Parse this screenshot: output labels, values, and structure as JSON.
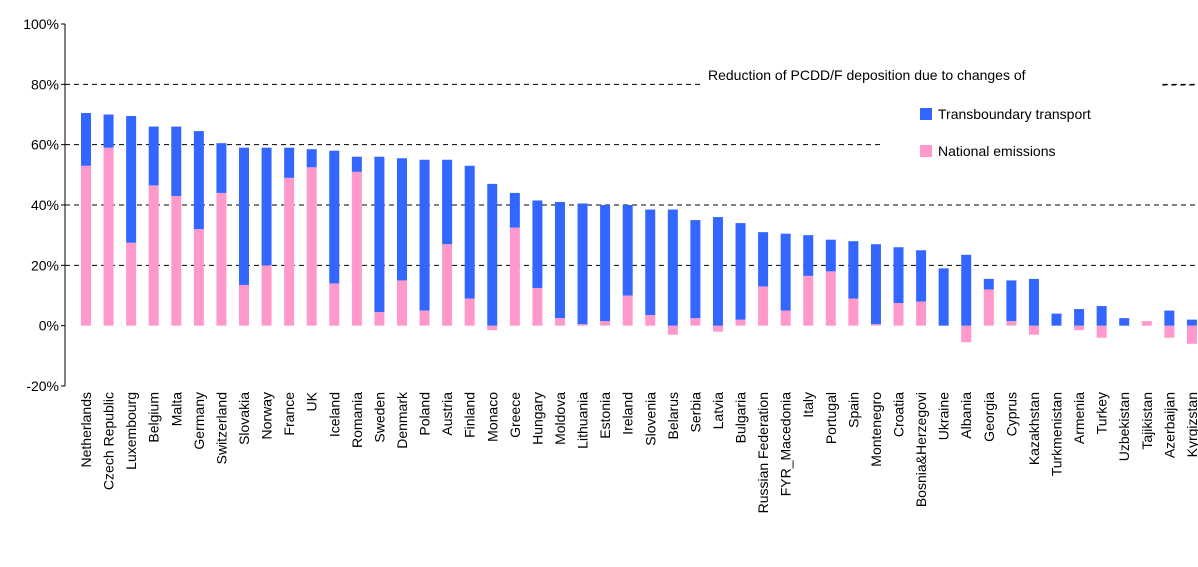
{
  "chart_data": {
    "type": "bar",
    "stacked": true,
    "legend_title": "Reduction of PCDD/F deposition due to changes of",
    "categories": [
      "Netherlands",
      "Czech Republic",
      "Luxembourg",
      "Belgium",
      "Malta",
      "Germany",
      "Switzerland",
      "Slovakia",
      "Norway",
      "France",
      "UK",
      "Iceland",
      "Romania",
      "Sweden",
      "Denmark",
      "Poland",
      "Austria",
      "Finland",
      "Monaco",
      "Greece",
      "Hungary",
      "Moldova",
      "Lithuania",
      "Estonia",
      "Ireland",
      "Slovenia",
      "Belarus",
      "Serbia",
      "Latvia",
      "Bulgaria",
      "Russian Federation",
      "FYR_Macedonia",
      "Italy",
      "Portugal",
      "Spain",
      "Montenegro",
      "Croatia",
      "Bosnia&Herzegovi",
      "Ukraine",
      "Albania",
      "Georgia",
      "Cyprus",
      "Kazakhstan",
      "Turkmenistan",
      "Armenia",
      "Turkey",
      "Uzbekistan",
      "Tajikistan",
      "Azerbaijan",
      "Kyrgizstan"
    ],
    "series": [
      {
        "name": "National emissions",
        "color": "#ff99cc",
        "values": [
          53,
          59,
          27.5,
          46.5,
          43,
          32,
          44,
          13.5,
          20,
          49,
          52.5,
          14,
          51,
          4.5,
          15,
          5,
          27,
          9,
          -1.5,
          32.5,
          12.5,
          2.5,
          0.5,
          1.5,
          10,
          3.5,
          -3,
          2.5,
          -2,
          2,
          13,
          5,
          16.5,
          18,
          9,
          0.5,
          7.5,
          8,
          0,
          -5.5,
          12,
          1.5,
          -3,
          0,
          -1.5,
          -4,
          0,
          1.5,
          -4,
          -6
        ]
      },
      {
        "name": "Transboundary transport",
        "color": "#3366ff",
        "values": [
          17.5,
          11,
          42,
          19.5,
          23,
          32.5,
          16.5,
          45.5,
          39,
          10,
          6,
          44,
          5,
          51.5,
          40.5,
          50,
          28,
          44,
          47,
          11.5,
          29,
          38.5,
          40,
          38.5,
          30,
          35,
          38.5,
          32.5,
          36,
          32,
          18,
          25.5,
          13.5,
          10.5,
          19,
          26.5,
          18.5,
          17,
          19,
          23.5,
          3.5,
          13.5,
          15.5,
          4,
          5.5,
          6.5,
          2.5,
          0,
          5,
          2
        ]
      }
    ],
    "ylim": [
      -20,
      100
    ],
    "yticks": [
      {
        "value": -20,
        "label": "-20%"
      },
      {
        "value": 0,
        "label": "0%"
      },
      {
        "value": 20,
        "label": "20%"
      },
      {
        "value": 40,
        "label": "40%"
      },
      {
        "value": 60,
        "label": "60%"
      },
      {
        "value": 80,
        "label": "80%"
      },
      {
        "value": 100,
        "label": "100%"
      }
    ],
    "grid": true
  }
}
